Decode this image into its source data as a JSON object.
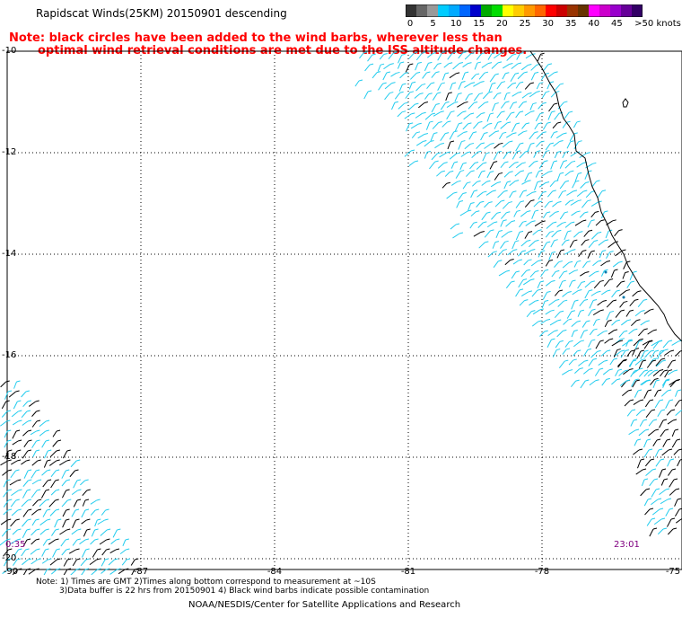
{
  "header": {
    "title": "Rapidscat Winds(25KM) 20150901 descending",
    "note_line1": "Note: black circles have been added to the wind barbs, wherever less than",
    "note_line2": "optimal wind retrieval conditions are met due to the ISS altitude changes."
  },
  "colorbar": {
    "labels": [
      "0",
      "5",
      "10",
      "15",
      "20",
      "25",
      "30",
      "35",
      "40",
      "45",
      ">50 knots"
    ],
    "colors": [
      "#333333",
      "#666666",
      "#999999",
      "#00ccff",
      "#00aaff",
      "#0066ff",
      "#0000cc",
      "#00aa00",
      "#00dd00",
      "#ffff00",
      "#ffcc00",
      "#ff9900",
      "#ff6600",
      "#ff0000",
      "#cc0000",
      "#993300",
      "#663300",
      "#ff00ff",
      "#cc00cc",
      "#9900cc",
      "#660099",
      "#330066"
    ]
  },
  "map": {
    "lat_labels": [
      "-10",
      "-12",
      "-14",
      "-16",
      "-18",
      "-20"
    ],
    "lon_labels": [
      "-90",
      "-87",
      "-84",
      "-81",
      "-78",
      "-75"
    ],
    "lat_range": [
      -20.5,
      -10
    ],
    "lon_range": [
      -90,
      -75
    ],
    "coast_color": "#000000",
    "barb_color_primary": "#22ccee",
    "barb_color_flagged": "#000000"
  },
  "times": {
    "left": "0:35",
    "right": "23:01"
  },
  "footer": {
    "line1": "Note: 1) Times are GMT 2)Times along bottom correspond to measurement at ~10S",
    "line2": "3)Data buffer is 22 hrs from 20150901 4) Black wind barbs indicate possible contamination",
    "credit": "NOAA/NESDIS/Center for Satellite Applications and Research"
  }
}
